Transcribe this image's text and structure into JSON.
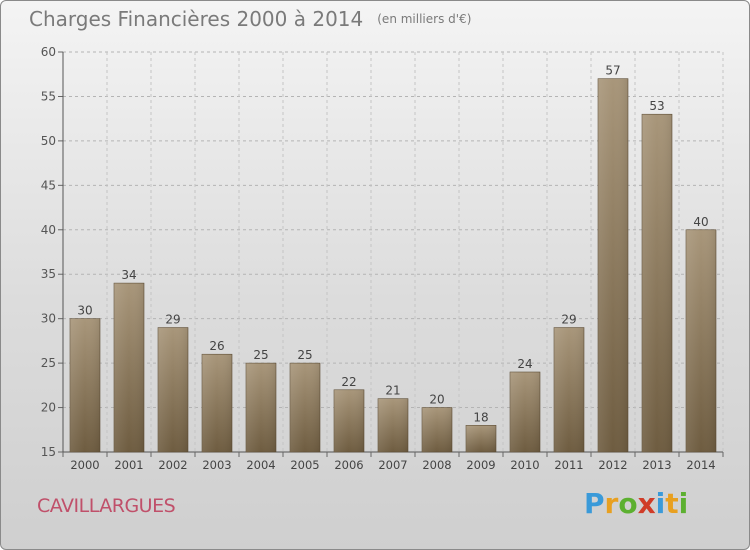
{
  "title": "Charges Financières 2000 à 2014",
  "subtitle": "(en milliers d'€)",
  "city": "CAVILLARGUES",
  "logo": {
    "letters": [
      "P",
      "r",
      "o",
      "x",
      "i",
      "t",
      "i"
    ],
    "colors": [
      "#3a9ad9",
      "#e8a020",
      "#5cb030",
      "#d03c28",
      "#3a9ad9",
      "#e8a020",
      "#5cb030"
    ]
  },
  "chart_data": {
    "type": "bar",
    "categories": [
      "2000",
      "2001",
      "2002",
      "2003",
      "2004",
      "2005",
      "2006",
      "2007",
      "2008",
      "2009",
      "2010",
      "2011",
      "2012",
      "2013",
      "2014"
    ],
    "values": [
      30,
      34,
      29,
      26,
      25,
      25,
      22,
      21,
      20,
      18,
      24,
      29,
      57,
      53,
      40
    ],
    "ylim": [
      15,
      60
    ],
    "yticks": [
      15,
      20,
      25,
      30,
      35,
      40,
      45,
      50,
      55,
      60
    ],
    "grid": true,
    "bar_color_top": "#a8967a",
    "bar_color_bottom": "#6e5c40"
  }
}
